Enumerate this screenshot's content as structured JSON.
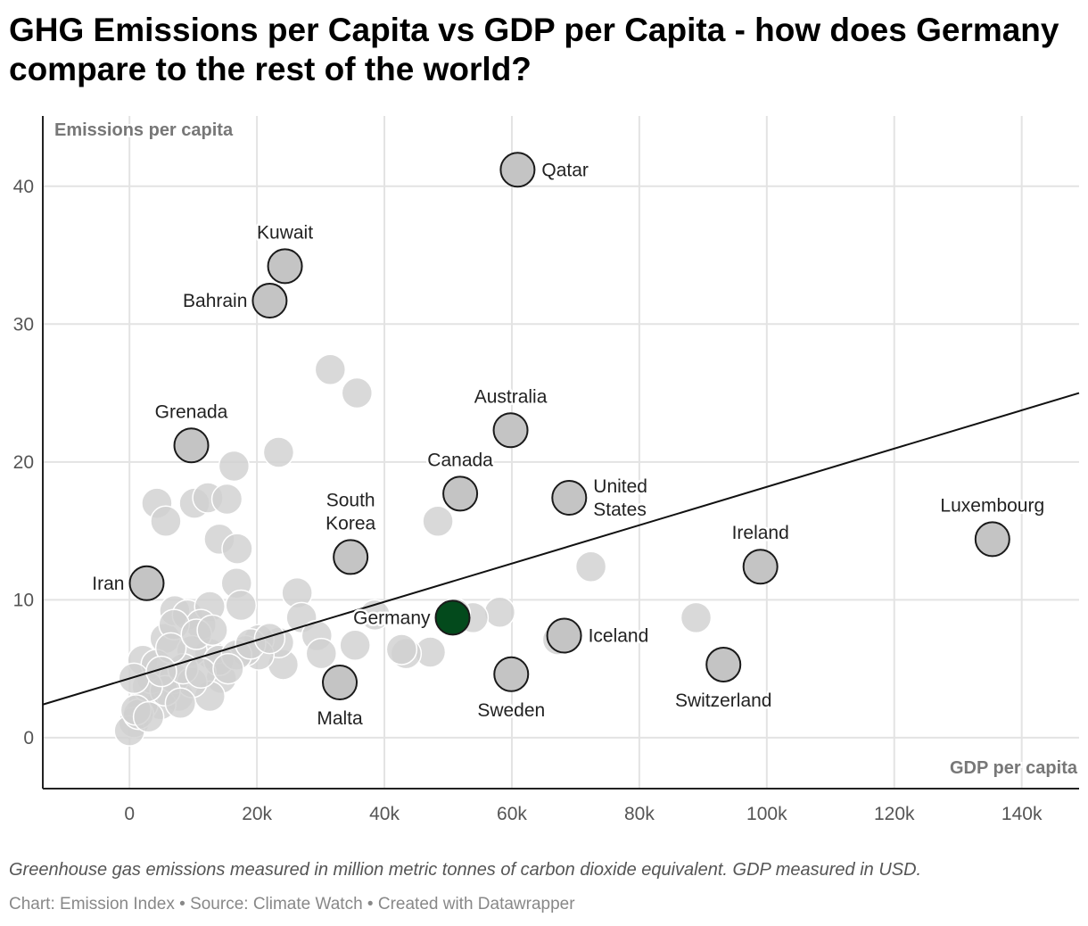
{
  "chart_data": {
    "type": "scatter",
    "title": "GHG Emissions per Capita vs GDP per Capita - how does Germany compare to the rest of the world?",
    "xlabel": "GDP per capita",
    "ylabel": "Emissions per capita",
    "xlim": [
      -13.6,
      149
    ],
    "ylim": [
      -3.7,
      45.1
    ],
    "x_unit": "thousand USD",
    "x_ticks": [
      0,
      20,
      40,
      60,
      80,
      100,
      120,
      140
    ],
    "x_tick_labels": [
      "0",
      "20k",
      "40k",
      "60k",
      "80k",
      "100k",
      "120k",
      "140k"
    ],
    "y_ticks": [
      0,
      10,
      20,
      30,
      40
    ],
    "y_tick_labels": [
      "0",
      "10",
      "20",
      "30",
      "40"
    ],
    "grid": true,
    "trendline": {
      "x": [
        -13.6,
        149
      ],
      "y": [
        2.4,
        25.0
      ]
    },
    "colors": {
      "highlight": "#034a1c",
      "labeled": "#c4c4c4",
      "background": "#cfcfcf",
      "outline": "#1a1a1a"
    },
    "labeled_points": [
      {
        "name": "Qatar",
        "x": 60.9,
        "y": 41.2,
        "label_pos": "right"
      },
      {
        "name": "Kuwait",
        "x": 24.4,
        "y": 34.2,
        "label_pos": "top"
      },
      {
        "name": "Bahrain",
        "x": 22.0,
        "y": 31.7,
        "label_pos": "left"
      },
      {
        "name": "Grenada",
        "x": 9.7,
        "y": 21.2,
        "label_pos": "top"
      },
      {
        "name": "Australia",
        "x": 59.8,
        "y": 22.3,
        "label_pos": "top"
      },
      {
        "name": "Canada",
        "x": 51.9,
        "y": 17.7,
        "label_pos": "top"
      },
      {
        "name": "United States",
        "x": 69.0,
        "y": 17.4,
        "label_pos": "right",
        "wrap": true
      },
      {
        "name": "South Korea",
        "x": 34.7,
        "y": 13.1,
        "label_pos": "top",
        "wrap": true
      },
      {
        "name": "Iran",
        "x": 2.7,
        "y": 11.2,
        "label_pos": "left"
      },
      {
        "name": "Germany",
        "x": 50.7,
        "y": 8.7,
        "label_pos": "left",
        "highlight": true
      },
      {
        "name": "Iceland",
        "x": 68.2,
        "y": 7.4,
        "label_pos": "right"
      },
      {
        "name": "Malta",
        "x": 33.0,
        "y": 4.0,
        "label_pos": "bottom"
      },
      {
        "name": "Sweden",
        "x": 59.9,
        "y": 4.6,
        "label_pos": "bottom"
      },
      {
        "name": "Switzerland",
        "x": 93.2,
        "y": 5.3,
        "label_pos": "bottom"
      },
      {
        "name": "Ireland",
        "x": 99.0,
        "y": 12.4,
        "label_pos": "top"
      },
      {
        "name": "Luxembourg",
        "x": 135.4,
        "y": 14.4,
        "label_pos": "top"
      }
    ],
    "other_points": [
      [
        31.5,
        26.7
      ],
      [
        35.7,
        25.0
      ],
      [
        23.4,
        20.7
      ],
      [
        16.4,
        19.7
      ],
      [
        4.3,
        17.0
      ],
      [
        5.7,
        15.7
      ],
      [
        10.2,
        17.0
      ],
      [
        12.3,
        17.4
      ],
      [
        15.3,
        17.3
      ],
      [
        14.1,
        14.4
      ],
      [
        16.9,
        13.7
      ],
      [
        16.8,
        11.2
      ],
      [
        17.5,
        9.6
      ],
      [
        48.4,
        15.7
      ],
      [
        72.4,
        12.4
      ],
      [
        88.9,
        8.7
      ],
      [
        58.1,
        9.1
      ],
      [
        53.9,
        8.7
      ],
      [
        51.1,
        9.0
      ],
      [
        67.2,
        7.1
      ],
      [
        47.2,
        6.2
      ],
      [
        43.4,
        6.1
      ],
      [
        42.7,
        6.4
      ],
      [
        35.4,
        6.7
      ],
      [
        38.5,
        8.9
      ],
      [
        26.3,
        10.5
      ],
      [
        27.0,
        8.7
      ],
      [
        29.4,
        7.4
      ],
      [
        30.1,
        6.1
      ],
      [
        24.1,
        5.3
      ],
      [
        23.4,
        6.9
      ],
      [
        20.3,
        7.1
      ],
      [
        20.3,
        6.0
      ],
      [
        18.2,
        6.3
      ],
      [
        12.6,
        6.1
      ],
      [
        14.4,
        4.3
      ],
      [
        12.6,
        3.0
      ],
      [
        7.7,
        3.0
      ],
      [
        4.9,
        2.4
      ],
      [
        2.1,
        2.4
      ],
      [
        0.7,
        1.1
      ],
      [
        0.0,
        0.5
      ],
      [
        1.4,
        1.7
      ],
      [
        3.5,
        4.3
      ],
      [
        2.1,
        5.6
      ],
      [
        5.6,
        7.2
      ],
      [
        7.1,
        9.2
      ],
      [
        9.1,
        8.9
      ],
      [
        12.6,
        9.5
      ],
      [
        11.2,
        8.2
      ],
      [
        7.0,
        8.2
      ],
      [
        9.8,
        6.3
      ],
      [
        14.0,
        5.6
      ],
      [
        16.8,
        6.0
      ],
      [
        4.2,
        5.3
      ],
      [
        7.0,
        4.3
      ],
      [
        9.8,
        4.0
      ],
      [
        5.6,
        3.4
      ],
      [
        8.4,
        5.0
      ],
      [
        11.2,
        4.7
      ],
      [
        2.8,
        3.7
      ],
      [
        0.7,
        4.3
      ],
      [
        1.0,
        2.0
      ],
      [
        3.0,
        1.5
      ],
      [
        6.5,
        6.5
      ],
      [
        10.5,
        7.5
      ],
      [
        13.0,
        7.8
      ],
      [
        15.5,
        5.0
      ],
      [
        19.0,
        6.8
      ],
      [
        22.0,
        7.2
      ],
      [
        8.0,
        2.5
      ],
      [
        5.0,
        4.8
      ]
    ],
    "notes": "Greenhouse gas emissions measured in million metric tonnes of carbon dioxide equivalent. GDP measured in USD.",
    "byline": "Chart: Emission Index • Source: Climate Watch • Created with Datawrapper"
  }
}
